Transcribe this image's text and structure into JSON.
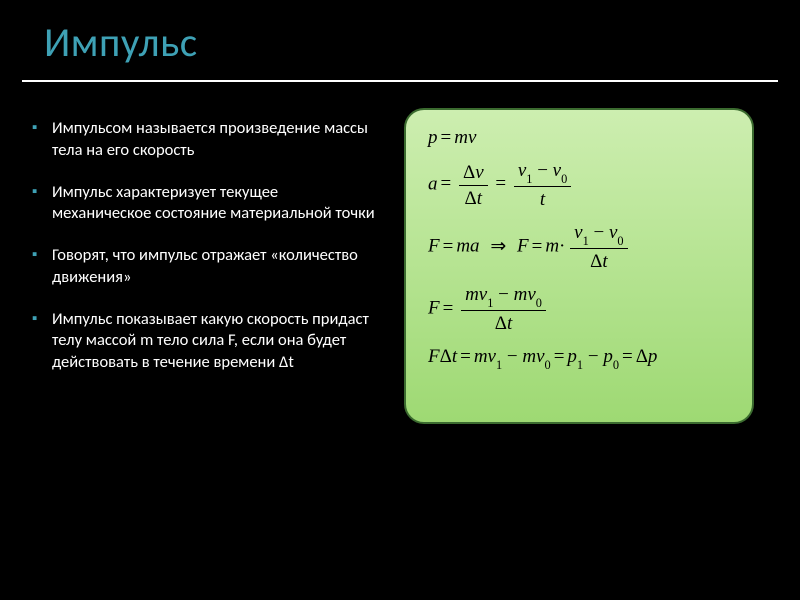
{
  "title": {
    "text": "Импульс",
    "color": "#3ea1b5",
    "fontsize": 41
  },
  "bullets": {
    "marker_color": "#3ea1b5",
    "text_color": "#ffffff",
    "fontsize": 16.5,
    "items": [
      "Импульсом называется произведение массы тела на его скорость",
      "Импульс характеризует текущее механическое состояние материальной точки",
      "Говорят, что импульс отражает «количество движения»",
      "Импульс показывает какую скорость придаст телу массой m тело сила F, если она будет действовать в течение времени Δt"
    ]
  },
  "formula_box": {
    "bg_gradient_top": "#cdeeb0",
    "bg_gradient_bottom": "#9ed973",
    "border_color": "#3b6b2f",
    "border_radius": 20,
    "text_color": "#000000",
    "fontsize": 19,
    "formulas_tex": [
      "p = mv",
      "a = \\frac{\\Delta v}{\\Delta t} = \\frac{v_1 - v_0}{t}",
      "F = ma \\Rightarrow F = m \\cdot \\frac{v_1 - v_0}{\\Delta t}",
      "F = \\frac{m v_1 - m v_0}{\\Delta t}",
      "F \\Delta t = m v_1 - m v_0 = p_1 - p_0 = \\Delta p"
    ]
  },
  "slide_bg": "#000000",
  "underline_color": "#ffffff"
}
